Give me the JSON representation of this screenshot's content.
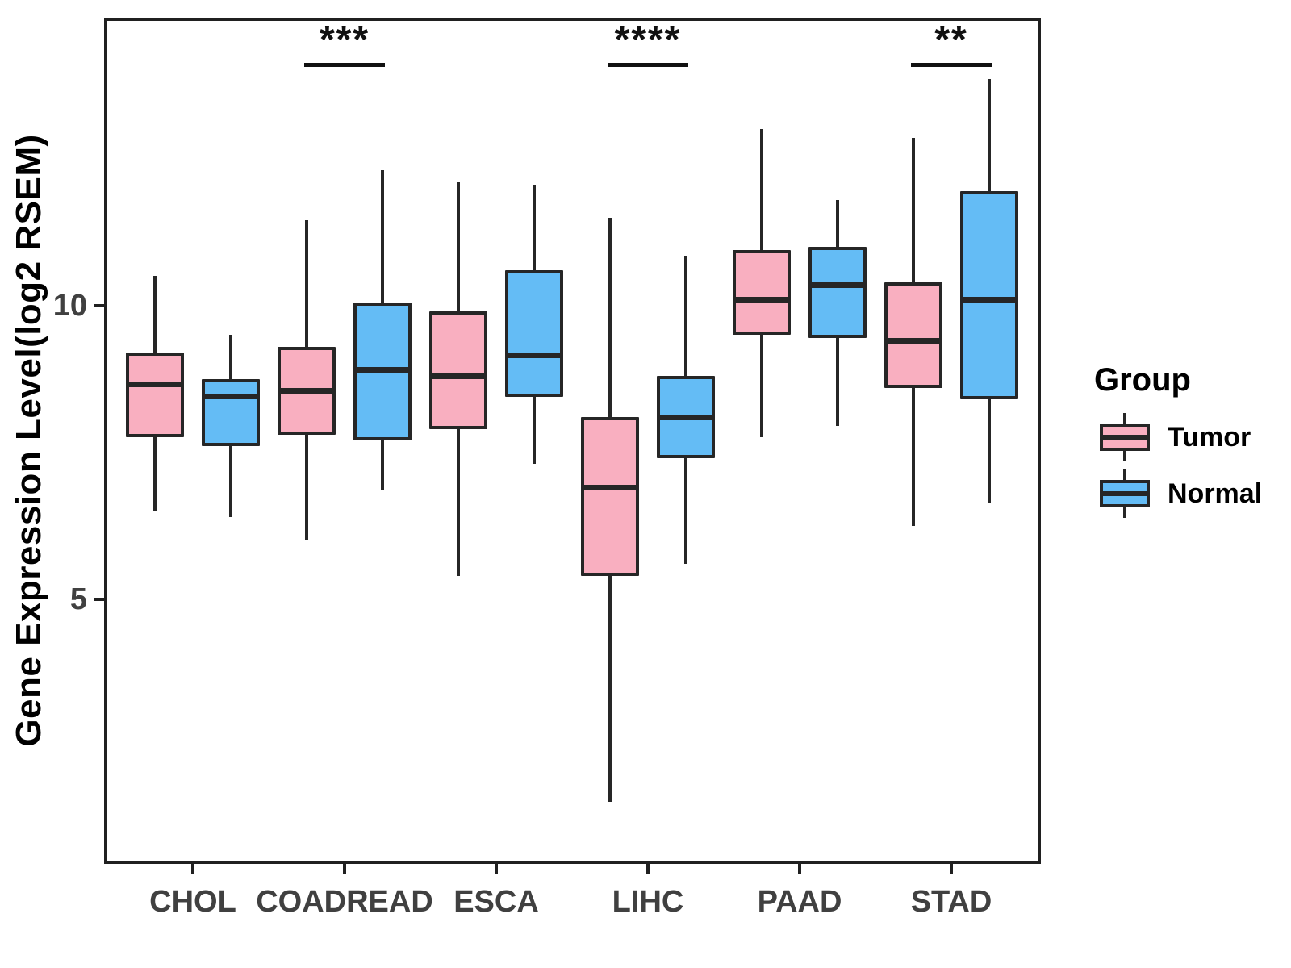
{
  "chart_data": {
    "type": "boxplot",
    "title": "",
    "xlabel": "",
    "ylabel": "Gene Expression Level(log2 RSEM)",
    "categories": [
      "CHOL",
      "COADREAD",
      "ESCA",
      "LIHC",
      "PAAD",
      "STAD"
    ],
    "ylim": [
      0.49,
      14.9
    ],
    "yticks": [
      5,
      10
    ],
    "grid": false,
    "legend": {
      "title": "Group",
      "position": "right",
      "items": [
        "Tumor",
        "Normal"
      ]
    },
    "groups": [
      {
        "name": "Tumor",
        "fill": "#F9AFC0"
      },
      {
        "name": "Normal",
        "fill": "#64BCF5"
      }
    ],
    "series": [
      {
        "name": "Tumor",
        "values": [
          {
            "category": "CHOL",
            "whisker_low": 6.5,
            "q1": 7.75,
            "median": 8.65,
            "q3": 9.2,
            "whisker_high": 10.5
          },
          {
            "category": "COADREAD",
            "whisker_low": 6.0,
            "q1": 7.8,
            "median": 8.55,
            "q3": 9.3,
            "whisker_high": 11.45
          },
          {
            "category": "ESCA",
            "whisker_low": 5.4,
            "q1": 7.9,
            "median": 8.8,
            "q3": 9.9,
            "whisker_high": 12.1
          },
          {
            "category": "LIHC",
            "whisker_low": 1.55,
            "q1": 5.4,
            "median": 6.9,
            "q3": 8.1,
            "whisker_high": 11.5
          },
          {
            "category": "PAAD",
            "whisker_low": 7.75,
            "q1": 9.5,
            "median": 10.1,
            "q3": 10.95,
            "whisker_high": 13.0
          },
          {
            "category": "STAD",
            "whisker_low": 6.25,
            "q1": 8.6,
            "median": 9.4,
            "q3": 10.4,
            "whisker_high": 12.85
          }
        ]
      },
      {
        "name": "Normal",
        "values": [
          {
            "category": "CHOL",
            "whisker_low": 6.4,
            "q1": 7.6,
            "median": 8.45,
            "q3": 8.75,
            "whisker_high": 9.5
          },
          {
            "category": "COADREAD",
            "whisker_low": 6.85,
            "q1": 7.7,
            "median": 8.9,
            "q3": 10.05,
            "whisker_high": 12.3
          },
          {
            "category": "ESCA",
            "whisker_low": 7.3,
            "q1": 8.45,
            "median": 9.15,
            "q3": 10.6,
            "whisker_high": 12.05
          },
          {
            "category": "LIHC",
            "whisker_low": 5.6,
            "q1": 7.4,
            "median": 8.1,
            "q3": 8.8,
            "whisker_high": 10.85
          },
          {
            "category": "PAAD",
            "whisker_low": 7.95,
            "q1": 9.45,
            "median": 10.35,
            "q3": 11.0,
            "whisker_high": 11.8
          },
          {
            "category": "STAD",
            "whisker_low": 6.65,
            "q1": 8.4,
            "median": 10.1,
            "q3": 11.95,
            "whisker_high": 13.85
          }
        ]
      }
    ],
    "significance": [
      {
        "category": "COADREAD",
        "label": "***"
      },
      {
        "category": "LIHC",
        "label": "****"
      },
      {
        "category": "STAD",
        "label": "**"
      }
    ],
    "colors": {
      "tumor_fill": "#F9AFC0",
      "normal_fill": "#64BCF5",
      "box_border": "#262626",
      "panel_border": "#202020",
      "axis_text": "#404040",
      "title_text": "#000000"
    }
  }
}
